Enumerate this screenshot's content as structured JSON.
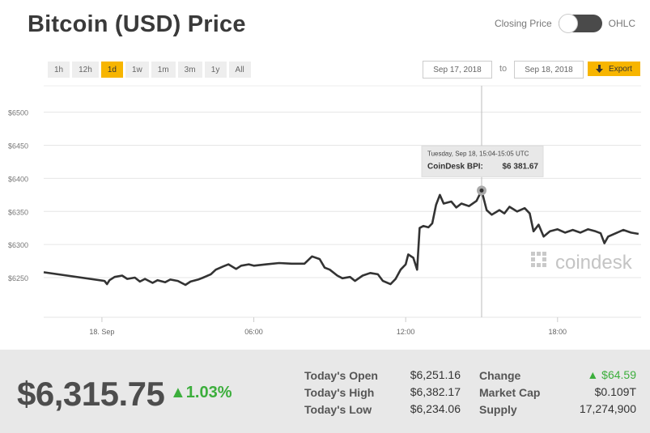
{
  "title": "Bitcoin (USD) Price",
  "toggle": {
    "left_label": "Closing Price",
    "right_label": "OHLC"
  },
  "ranges": [
    "1h",
    "12h",
    "1d",
    "1w",
    "1m",
    "3m",
    "1y",
    "All"
  ],
  "active_range": "1d",
  "date_from": "Sep 17, 2018",
  "date_to_label": "to",
  "date_to": "Sep 18, 2018",
  "export_label": "Export",
  "export_icon": "download-arrow-icon",
  "colors": {
    "accent": "#f7b500",
    "line": "#333333",
    "positive": "#3cae3c"
  },
  "chart_data": {
    "type": "line",
    "y_ticks": [
      "$6250",
      "$6300",
      "$6350",
      "$6400",
      "$6450",
      "$6500"
    ],
    "y_tick_values": [
      6250,
      6300,
      6350,
      6400,
      6450,
      6500
    ],
    "x_ticks": [
      "18. Sep",
      "06:00",
      "12:00",
      "18:00"
    ],
    "x_tick_hours": [
      0,
      6,
      12,
      18
    ],
    "xlim": [
      -2.3,
      21.3
    ],
    "ylim": [
      6190,
      6540
    ],
    "grid": true,
    "series": [
      {
        "values": [
          [
            -2.3,
            6258
          ],
          [
            0.1,
            6245
          ],
          [
            0.2,
            6240
          ],
          [
            0.3,
            6246
          ],
          [
            0.5,
            6251
          ],
          [
            0.8,
            6253
          ],
          [
            1.0,
            6248
          ],
          [
            1.3,
            6250
          ],
          [
            1.5,
            6244
          ],
          [
            1.7,
            6248
          ],
          [
            2.0,
            6242
          ],
          [
            2.2,
            6246
          ],
          [
            2.5,
            6243
          ],
          [
            2.7,
            6247
          ],
          [
            3.0,
            6245
          ],
          [
            3.3,
            6239
          ],
          [
            3.5,
            6244
          ],
          [
            3.8,
            6247
          ],
          [
            4.0,
            6250
          ],
          [
            4.3,
            6255
          ],
          [
            4.5,
            6262
          ],
          [
            4.8,
            6267
          ],
          [
            5.0,
            6270
          ],
          [
            5.3,
            6263
          ],
          [
            5.5,
            6268
          ],
          [
            5.8,
            6270
          ],
          [
            6.0,
            6268
          ],
          [
            6.5,
            6270
          ],
          [
            7.0,
            6272
          ],
          [
            7.5,
            6271
          ],
          [
            8.0,
            6271
          ],
          [
            8.3,
            6282
          ],
          [
            8.6,
            6278
          ],
          [
            8.8,
            6265
          ],
          [
            9.0,
            6262
          ],
          [
            9.3,
            6253
          ],
          [
            9.5,
            6249
          ],
          [
            9.8,
            6251
          ],
          [
            10.0,
            6245
          ],
          [
            10.3,
            6253
          ],
          [
            10.6,
            6257
          ],
          [
            10.9,
            6255
          ],
          [
            11.1,
            6245
          ],
          [
            11.4,
            6240
          ],
          [
            11.6,
            6248
          ],
          [
            11.8,
            6262
          ],
          [
            12.0,
            6270
          ],
          [
            12.1,
            6285
          ],
          [
            12.3,
            6280
          ],
          [
            12.45,
            6262
          ],
          [
            12.55,
            6325
          ],
          [
            12.7,
            6328
          ],
          [
            12.9,
            6326
          ],
          [
            13.05,
            6332
          ],
          [
            13.2,
            6360
          ],
          [
            13.35,
            6375
          ],
          [
            13.5,
            6362
          ],
          [
            13.8,
            6365
          ],
          [
            14.0,
            6356
          ],
          [
            14.2,
            6362
          ],
          [
            14.5,
            6358
          ],
          [
            14.8,
            6366
          ],
          [
            15.0,
            6381.67
          ],
          [
            15.2,
            6352
          ],
          [
            15.4,
            6345
          ],
          [
            15.7,
            6352
          ],
          [
            15.9,
            6347
          ],
          [
            16.1,
            6357
          ],
          [
            16.4,
            6350
          ],
          [
            16.7,
            6355
          ],
          [
            16.9,
            6347
          ],
          [
            17.05,
            6320
          ],
          [
            17.25,
            6330
          ],
          [
            17.45,
            6312
          ],
          [
            17.7,
            6320
          ],
          [
            18.0,
            6323
          ],
          [
            18.3,
            6318
          ],
          [
            18.6,
            6322
          ],
          [
            18.9,
            6318
          ],
          [
            19.2,
            6323
          ],
          [
            19.5,
            6320
          ],
          [
            19.7,
            6317
          ],
          [
            19.85,
            6302
          ],
          [
            20.0,
            6312
          ],
          [
            20.3,
            6317
          ],
          [
            20.6,
            6322
          ],
          [
            20.9,
            6318
          ],
          [
            21.2,
            6316
          ]
        ]
      }
    ],
    "tooltip": {
      "time": "Tuesday, Sep 18, 15:04-15:05 UTC",
      "label": "CoinDesk BPI:",
      "value": "$6 381.67",
      "hour": 15.0,
      "price": 6381.67
    },
    "watermark": "coindesk",
    "watermark_icon": "coindesk-logo-icon"
  },
  "price": "$6,315.75",
  "change_pct": "1.03%",
  "stats": {
    "open_label": "Today's Open",
    "open_value": "$6,251.16",
    "high_label": "Today's High",
    "high_value": "$6,382.17",
    "low_label": "Today's Low",
    "low_value": "$6,234.06",
    "change_label": "Change",
    "change_value": "$64.59",
    "cap_label": "Market Cap",
    "cap_value": "$0.109T",
    "supply_label": "Supply",
    "supply_value": "17,274,900"
  }
}
